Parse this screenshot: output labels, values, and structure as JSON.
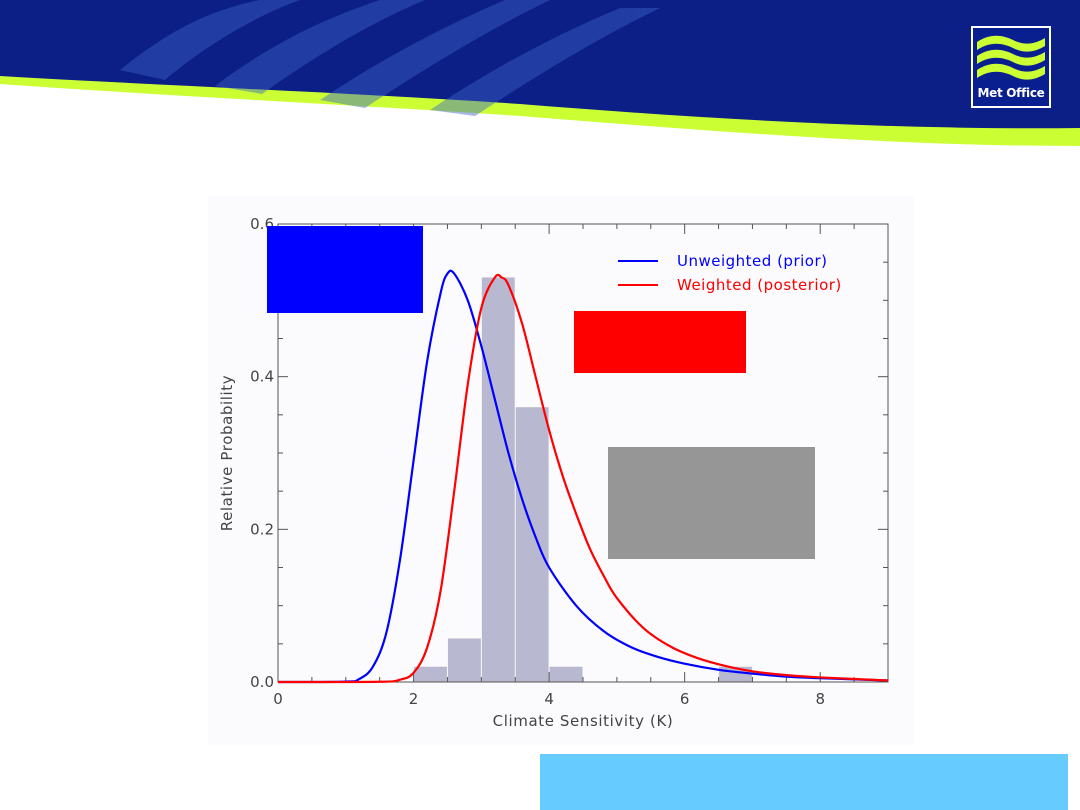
{
  "logo": {
    "text": "Met Office"
  },
  "colors": {
    "banner_navy": "#0b1f87",
    "banner_lime": "#ccff33",
    "prior": "#0000ff",
    "posterior": "#ff0000",
    "histogram": "#b8b8d0",
    "redact_blue": "#0000ff",
    "redact_red": "#ff0000",
    "redact_gray": "#969696",
    "bottom_box": "#66ccff"
  },
  "chart_data": {
    "type": "line",
    "xlabel": "Climate Sensitivity (K)",
    "ylabel": "Relative Probability",
    "xlim": [
      0,
      9
    ],
    "ylim": [
      0,
      0.6
    ],
    "x_ticks": [
      0,
      2,
      4,
      6,
      8
    ],
    "y_ticks": [
      0.0,
      0.2,
      0.4,
      0.6
    ],
    "x_tick_labels": [
      "0",
      "2",
      "4",
      "6",
      "8"
    ],
    "y_tick_labels": [
      "0.0",
      "0.2",
      "0.4",
      "0.6"
    ],
    "legend_position": "top-right",
    "series": [
      {
        "name": "Unweighted (prior)",
        "color": "#0000ff",
        "x": [
          0,
          1.0,
          1.2,
          1.4,
          1.6,
          1.8,
          2.0,
          2.2,
          2.4,
          2.5,
          2.6,
          2.8,
          3.0,
          3.2,
          3.4,
          3.6,
          3.8,
          4.0,
          4.4,
          4.8,
          5.2,
          5.6,
          6.0,
          6.5,
          7.0,
          7.5,
          8.0,
          9.0
        ],
        "y": [
          0,
          0.0005,
          0.004,
          0.02,
          0.065,
          0.16,
          0.29,
          0.42,
          0.51,
          0.535,
          0.535,
          0.5,
          0.44,
          0.37,
          0.3,
          0.24,
          0.19,
          0.15,
          0.1,
          0.067,
          0.046,
          0.033,
          0.024,
          0.016,
          0.011,
          0.007,
          0.005,
          0.002
        ]
      },
      {
        "name": "Weighted (posterior)",
        "color": "#ff0000",
        "x": [
          0,
          1.5,
          1.8,
          2.0,
          2.2,
          2.4,
          2.6,
          2.8,
          3.0,
          3.2,
          3.3,
          3.4,
          3.6,
          3.8,
          4.0,
          4.2,
          4.4,
          4.6,
          4.8,
          5.0,
          5.4,
          5.8,
          6.2,
          6.6,
          7.0,
          7.5,
          8.0,
          9.0
        ],
        "y": [
          0,
          0.0003,
          0.003,
          0.012,
          0.045,
          0.12,
          0.25,
          0.39,
          0.49,
          0.53,
          0.53,
          0.52,
          0.47,
          0.4,
          0.33,
          0.27,
          0.22,
          0.175,
          0.14,
          0.11,
          0.07,
          0.046,
          0.031,
          0.021,
          0.014,
          0.009,
          0.006,
          0.002
        ]
      }
    ],
    "histogram": {
      "color": "#b8b8d0",
      "bin_edges": [
        2.0,
        2.5,
        3.0,
        3.5,
        4.0,
        4.5,
        5.0,
        5.5,
        6.0,
        6.5,
        7.0
      ],
      "values": [
        0.02,
        0.057,
        0.53,
        0.36,
        0.02,
        0,
        0,
        0,
        0,
        0.02
      ]
    }
  }
}
